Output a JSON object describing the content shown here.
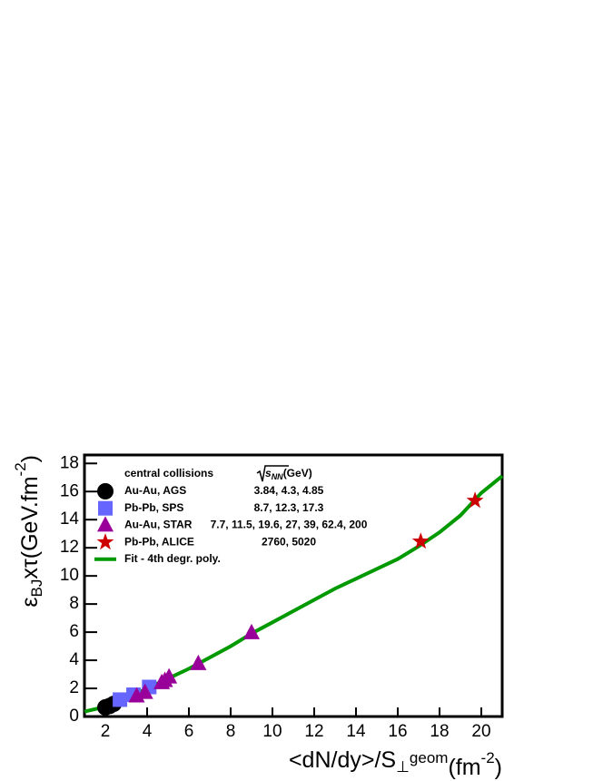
{
  "chart_data": {
    "type": "scatter",
    "xlabel": [
      {
        "text": "<dN/dy>/S"
      },
      {
        "text": "⊥",
        "shift": "sub"
      },
      {
        "text": "geom",
        "shift": "sup"
      },
      {
        "text": "(fm"
      },
      {
        "text": "-2",
        "shift": "sup"
      },
      {
        "text": ")"
      }
    ],
    "ylabel": [
      {
        "text": "ε"
      },
      {
        "text": "BJ",
        "shift": "sub"
      },
      {
        "text": "xτ(GeV.fm"
      },
      {
        "text": "-2",
        "shift": "sup"
      },
      {
        "text": ")"
      }
    ],
    "xlim": [
      1,
      21
    ],
    "ylim": [
      0,
      18.6
    ],
    "xticks": [
      2,
      4,
      6,
      8,
      10,
      12,
      14,
      16,
      18,
      20
    ],
    "yticks": [
      0,
      2,
      4,
      6,
      8,
      10,
      12,
      14,
      16,
      18
    ],
    "legend_title": "central collisions",
    "energy_header": {
      "symbol": "s",
      "subscript": "NN",
      "unit": "(GeV)"
    },
    "series": [
      {
        "name": "Au-Au, AGS",
        "energies": "3.84, 4.3, 4.85",
        "marker": "circle",
        "color": "#000000",
        "x": [
          2.0,
          2.2,
          2.4
        ],
        "values": [
          0.65,
          0.75,
          0.9
        ]
      },
      {
        "name": "Pb-Pb, SPS",
        "energies": "8.7, 12.3, 17.3",
        "marker": "square",
        "color": "#6666ff",
        "x": [
          2.7,
          3.35,
          4.1
        ],
        "values": [
          1.2,
          1.55,
          2.1
        ]
      },
      {
        "name": "Au-Au, STAR",
        "energies": "7.7, 11.5, 19.6, 27, 39, 62.4, 200",
        "marker": "triangle",
        "color": "#990099",
        "x": [
          3.5,
          3.9,
          4.7,
          4.85,
          5.05,
          6.45,
          9.0
        ],
        "values": [
          1.45,
          1.7,
          2.4,
          2.55,
          2.8,
          3.75,
          5.95
        ]
      },
      {
        "name": "Pb-Pb, ALICE",
        "energies": "2760, 5020",
        "marker": "star",
        "color": "#cc0000",
        "x": [
          17.1,
          19.7
        ],
        "values": [
          12.45,
          15.35
        ]
      },
      {
        "name": "Fit - 4th degr. poly.",
        "marker": "line",
        "color": "#009900",
        "x": [
          1,
          2,
          3,
          4,
          5,
          6,
          7,
          8,
          9,
          10,
          11,
          12,
          13,
          14,
          15,
          16,
          17,
          18,
          19,
          20,
          21
        ],
        "values": [
          0.35,
          0.7,
          1.3,
          2.0,
          2.7,
          3.4,
          4.2,
          5.0,
          5.9,
          6.7,
          7.5,
          8.3,
          9.1,
          9.8,
          10.5,
          11.2,
          12.1,
          13.1,
          14.3,
          15.9,
          17.1
        ]
      }
    ]
  }
}
